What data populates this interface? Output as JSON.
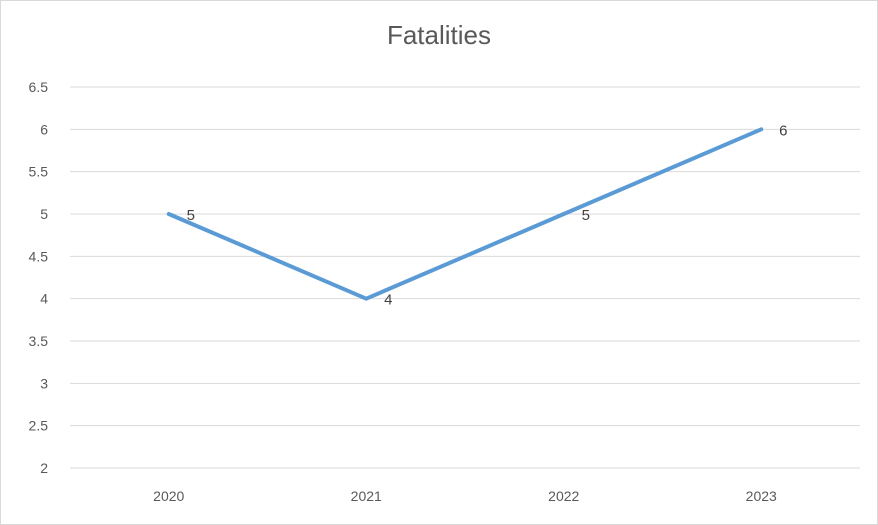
{
  "chart_data": {
    "type": "line",
    "title": "Fatalities",
    "xlabel": "",
    "ylabel": "",
    "categories": [
      "2020",
      "2021",
      "2022",
      "2023"
    ],
    "series": [
      {
        "values": [
          5,
          4,
          5,
          6
        ],
        "color": "#5B9BD5"
      }
    ],
    "ylim": [
      2,
      6.5
    ],
    "yticks": [
      "2",
      "2.5",
      "3",
      "3.5",
      "4",
      "4.5",
      "5",
      "5.5",
      "6",
      "6.5"
    ],
    "data_labels": [
      "5",
      "4",
      "5",
      "6"
    ],
    "grid": true,
    "legend": "none"
  }
}
